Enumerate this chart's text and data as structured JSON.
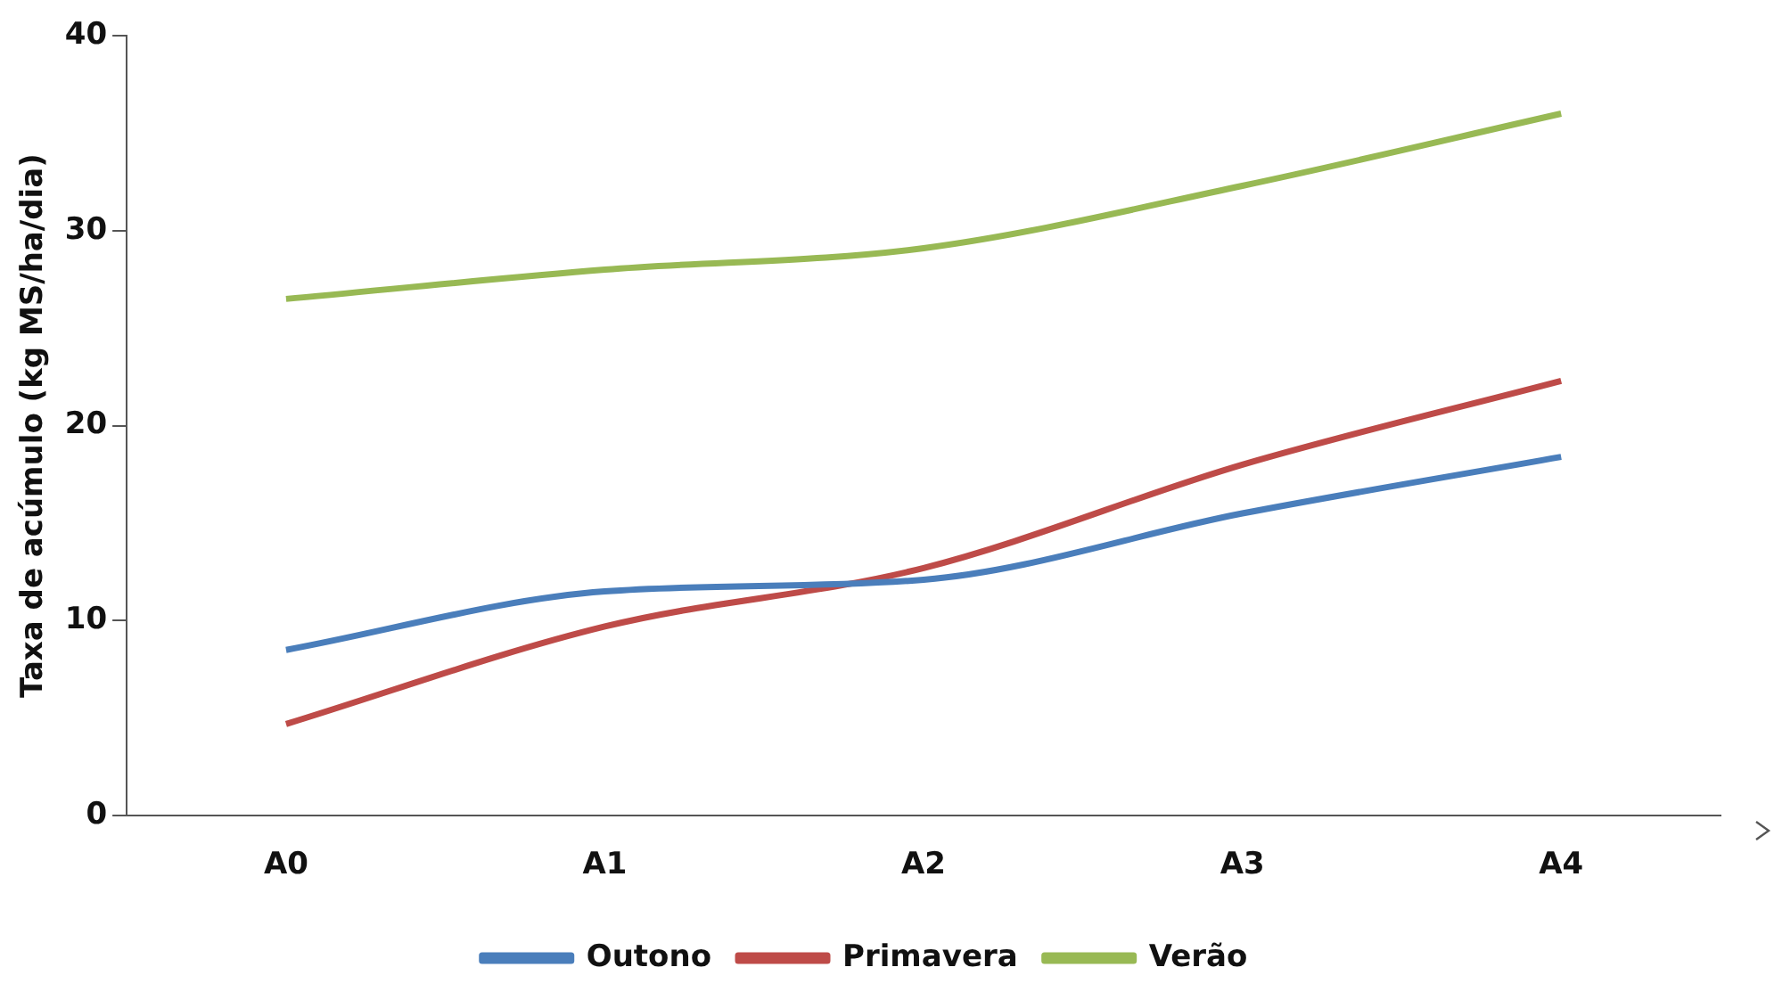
{
  "chart_data": {
    "type": "line",
    "ylabel": "Taxa de acúmulo (kg MS/ha/dia)",
    "categories": [
      "A0",
      "A1",
      "A2",
      "A3",
      "A4"
    ],
    "series": [
      {
        "name": "Outono",
        "color": "#4a7ebb",
        "values": [
          8.5,
          11.5,
          12.1,
          15.5,
          18.4
        ]
      },
      {
        "name": "Primavera",
        "color": "#be4b48",
        "values": [
          4.7,
          9.7,
          12.7,
          18,
          22.3
        ]
      },
      {
        "name": "Verão",
        "color": "#98b954",
        "values": [
          26.5,
          28,
          29.1,
          32.3,
          36
        ]
      }
    ],
    "ylim": [
      0,
      40
    ],
    "yticks": [
      0,
      10,
      20,
      30,
      40
    ],
    "grid": false,
    "legend": "bottom",
    "marker": "none",
    "line_style": "solid"
  }
}
